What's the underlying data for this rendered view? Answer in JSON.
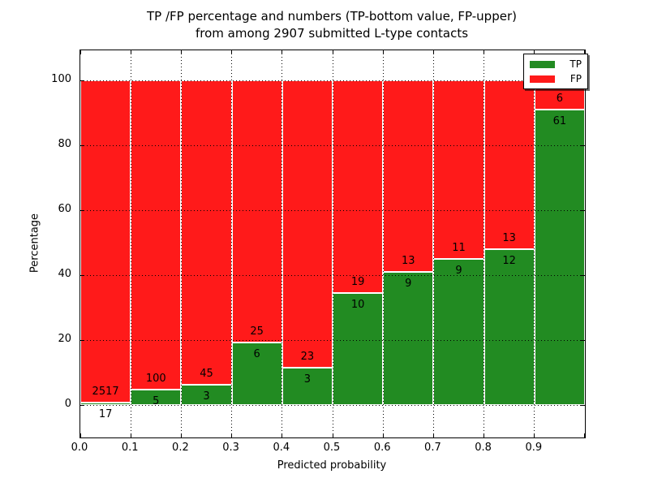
{
  "figure": {
    "title_line1": "TP /FP percentage and numbers (TP-bottom value, FP-upper)",
    "title_line2": "from among 2907 submitted L-type contacts"
  },
  "chart_data": {
    "type": "bar",
    "stacked": true,
    "normalized_to_percent": true,
    "title": "TP /FP percentage and numbers (TP-bottom value, FP-upper)\nfrom among 2907 submitted L-type contacts",
    "xlabel": "Predicted probability",
    "ylabel": "Percentage",
    "total_contacts": 2907,
    "bin_width": 0.1,
    "categories": [
      "0.0-0.1",
      "0.1-0.2",
      "0.2-0.3",
      "0.3-0.4",
      "0.4-0.5",
      "0.5-0.6",
      "0.6-0.7",
      "0.7-0.8",
      "0.8-0.9",
      "0.9-1.0"
    ],
    "x_tick_labels": [
      "0.0",
      "0.1",
      "0.2",
      "0.3",
      "0.4",
      "0.5",
      "0.6",
      "0.7",
      "0.8",
      "0.9"
    ],
    "y_ticks": [
      0,
      20,
      40,
      60,
      80,
      100
    ],
    "y_tick_labels": [
      "0",
      "20",
      "40",
      "60",
      "80",
      "100"
    ],
    "xlim": [
      0.0,
      1.0
    ],
    "ylim": [
      -10,
      109
    ],
    "grid": "dotted",
    "series": [
      {
        "name": "TP",
        "color": "#228b22",
        "counts": [
          17,
          5,
          3,
          6,
          3,
          10,
          9,
          9,
          12,
          61
        ]
      },
      {
        "name": "FP",
        "color": "#ff1a1a",
        "counts": [
          2517,
          100,
          45,
          25,
          23,
          19,
          13,
          11,
          13,
          6
        ]
      }
    ],
    "tp_percent_of_bin": [
      0.67,
      4.76,
      6.25,
      19.35,
      11.54,
      34.48,
      40.91,
      45.0,
      48.0,
      91.04
    ],
    "legend": {
      "position": "upper right",
      "items": [
        {
          "label": "TP",
          "color": "#228b22"
        },
        {
          "label": "FP",
          "color": "#ff1a1a"
        }
      ]
    }
  }
}
